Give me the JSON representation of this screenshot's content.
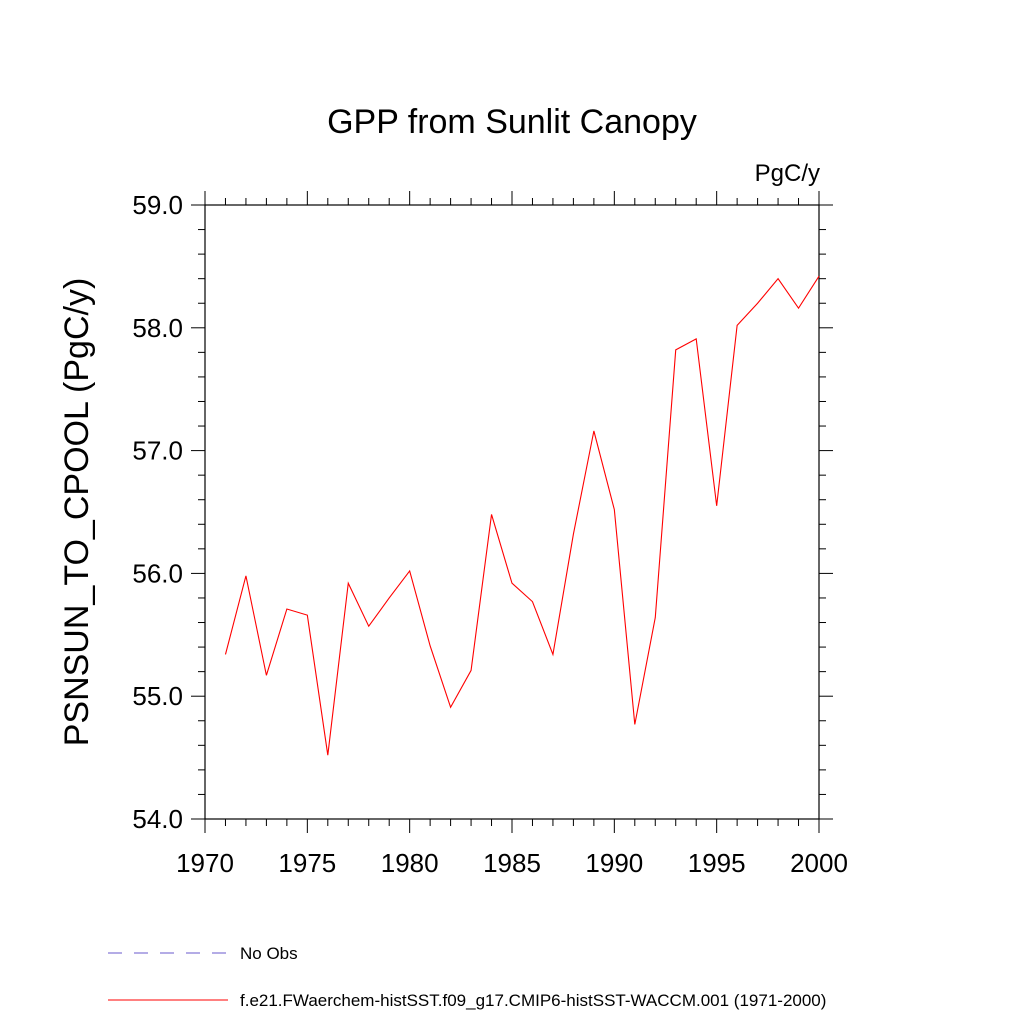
{
  "chart_data": {
    "type": "line",
    "title": "GPP from Sunlit Canopy",
    "units_label": "PgC/y",
    "ylabel": "PSNSUN_TO_CPOOL  (PgC/y)",
    "xlabel": "",
    "xlim": [
      1970,
      2000
    ],
    "ylim": [
      54.0,
      59.0
    ],
    "x_ticks": [
      1970,
      1975,
      1980,
      1985,
      1990,
      1995,
      2000
    ],
    "x_tick_labels": [
      "1970",
      "1975",
      "1980",
      "1985",
      "1990",
      "1995",
      "2000"
    ],
    "y_ticks": [
      54.0,
      55.0,
      56.0,
      57.0,
      58.0,
      59.0
    ],
    "y_tick_labels": [
      "54.0",
      "55.0",
      "56.0",
      "57.0",
      "58.0",
      "59.0"
    ],
    "x_minor_step": 1,
    "y_minor_step": 0.2,
    "grid": false,
    "legend_placement": "bottom-left",
    "series": [
      {
        "name": "f.e21.FWaerchem-histSST.f09_g17.CMIP6-histSST-WACCM.001 (1971-2000)",
        "color": "#ff0000",
        "style": "solid",
        "x": [
          1971,
          1972,
          1973,
          1974,
          1975,
          1976,
          1977,
          1978,
          1979,
          1980,
          1981,
          1982,
          1983,
          1984,
          1985,
          1986,
          1987,
          1988,
          1989,
          1990,
          1991,
          1992,
          1993,
          1994,
          1995,
          1996,
          1997,
          1998,
          1999,
          2000
        ],
        "values": [
          55.34,
          55.98,
          55.17,
          55.71,
          55.66,
          54.52,
          55.92,
          55.57,
          55.8,
          56.02,
          55.41,
          54.91,
          55.21,
          56.48,
          55.92,
          55.77,
          55.34,
          56.32,
          57.16,
          56.52,
          54.77,
          55.64,
          57.82,
          57.91,
          56.55,
          58.02,
          58.2,
          58.4,
          58.16,
          58.42
        ]
      }
    ],
    "legend": [
      {
        "label": "No Obs",
        "color": "#6a5acd",
        "style": "dashed"
      },
      {
        "label": "f.e21.FWaerchem-histSST.f09_g17.CMIP6-histSST-WACCM.001 (1971-2000)",
        "color": "#ff0000",
        "style": "solid"
      }
    ]
  }
}
